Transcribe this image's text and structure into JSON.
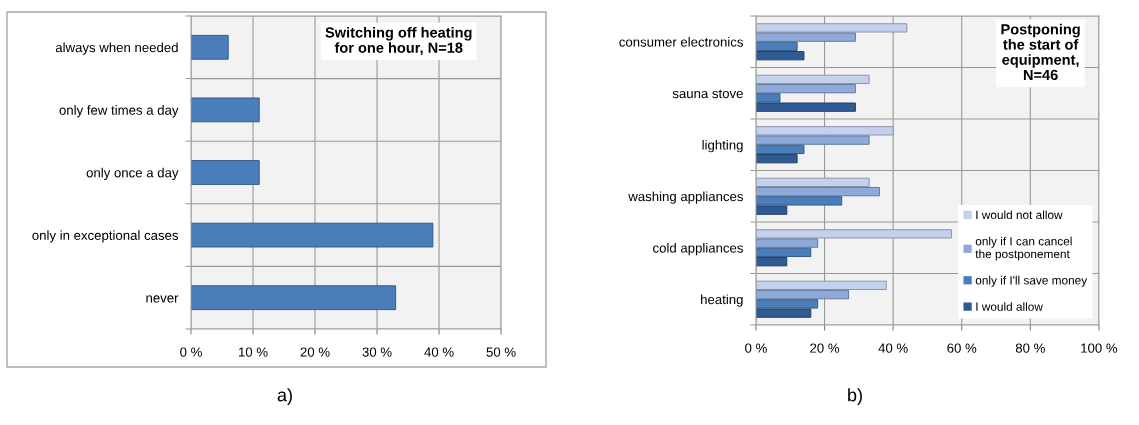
{
  "chart_data": [
    {
      "type": "bar",
      "orientation": "horizontal",
      "title": "Switching off heating\nfor one hour, N=18",
      "categories": [
        "always when needed",
        "only few times a day",
        "only once a day",
        "only in exceptional cases",
        "never"
      ],
      "values": [
        6,
        11,
        11,
        39,
        33
      ],
      "color": "#4a7ebb",
      "xlim": [
        0,
        50
      ],
      "xticks": [
        {
          "value": 0,
          "label": "0 %"
        },
        {
          "value": 10,
          "label": "10 %"
        },
        {
          "value": 20,
          "label": "20 %"
        },
        {
          "value": 30,
          "label": "30 %"
        },
        {
          "value": 40,
          "label": "40 %"
        },
        {
          "value": 50,
          "label": "50 %"
        }
      ],
      "grid": true,
      "annotations": [
        "a)"
      ]
    },
    {
      "type": "bar",
      "orientation": "horizontal",
      "title": "Postponing\nthe start of\nequipment,\nN=46",
      "categories": [
        "consumer electronics",
        "sauna stove",
        "lighting",
        "washing appliances",
        "cold appliances",
        "heating"
      ],
      "series": [
        {
          "name": "I would not allow",
          "color": "#c3d1ec",
          "values": [
            44,
            33,
            40,
            33,
            57,
            38
          ]
        },
        {
          "name": "only if I can cancel\nthe postponement",
          "color": "#8eaadb",
          "values": [
            29,
            29,
            33,
            36,
            18,
            27
          ]
        },
        {
          "name": "only if I'll save money",
          "color": "#4a7ebb",
          "values": [
            12,
            7,
            14,
            25,
            16,
            18
          ]
        },
        {
          "name": "I would allow",
          "color": "#2f5a93",
          "values": [
            14,
            29,
            12,
            9,
            9,
            16
          ]
        }
      ],
      "xlim": [
        0,
        100
      ],
      "xticks": [
        {
          "value": 0,
          "label": "0 %"
        },
        {
          "value": 20,
          "label": "20 %"
        },
        {
          "value": 40,
          "label": "40 %"
        },
        {
          "value": 60,
          "label": "60 %"
        },
        {
          "value": 80,
          "label": "80 %"
        },
        {
          "value": 100,
          "label": "100 %"
        }
      ],
      "grid": true,
      "legend": "bottom right",
      "annotations": [
        "b)"
      ]
    }
  ]
}
